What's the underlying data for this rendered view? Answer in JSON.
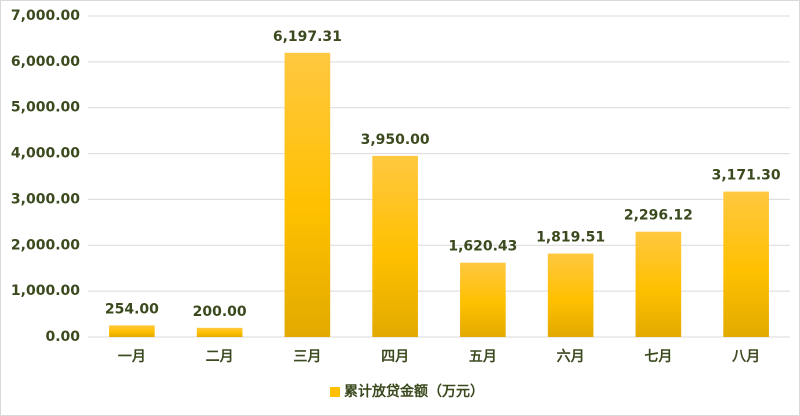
{
  "chart_data": {
    "type": "bar",
    "categories": [
      "一月",
      "二月",
      "三月",
      "四月",
      "五月",
      "六月",
      "七月",
      "八月"
    ],
    "series": [
      {
        "name": "累计放贷金额（万元）",
        "color": "#ffc000",
        "values": [
          254,
          200,
          6197.31,
          3950,
          1620.43,
          1819.51,
          2296.12,
          3171.3
        ],
        "value_labels": [
          "254.00",
          "200.00",
          "6,197.31",
          "3,950.00",
          "1,620.43",
          "1,819.51",
          "2,296.12",
          "3,171.30"
        ]
      }
    ],
    "ylim": [
      0,
      7000
    ],
    "yticks": [
      {
        "value": 0,
        "label": "0.00"
      },
      {
        "value": 1000,
        "label": "1,000.00"
      },
      {
        "value": 2000,
        "label": "2,000.00"
      },
      {
        "value": 3000,
        "label": "3,000.00"
      },
      {
        "value": 4000,
        "label": "4,000.00"
      },
      {
        "value": 5000,
        "label": "5,000.00"
      },
      {
        "value": 6000,
        "label": "6,000.00"
      },
      {
        "value": 7000,
        "label": "7,000.00"
      }
    ],
    "grid": true,
    "legend": "bottom"
  }
}
